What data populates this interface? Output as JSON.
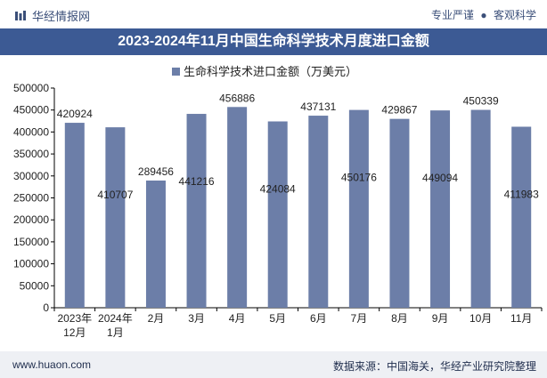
{
  "header": {
    "brand": "华经情报网",
    "tag1": "专业严谨",
    "separator": "●",
    "tag2": "客观科学"
  },
  "chart_data": {
    "type": "bar",
    "title": "2023-2024年11月中国生命科学技术月度进口金额",
    "categories": [
      "2023年\n12月",
      "2024年\n1月",
      "2月",
      "3月",
      "4月",
      "5月",
      "6月",
      "7月",
      "8月",
      "9月",
      "10月",
      "11月"
    ],
    "series": [
      {
        "name": "生命科学技术进口金额（万美元）",
        "values": [
          420924,
          410707,
          289456,
          441216,
          456886,
          424084,
          437131,
          450176,
          429867,
          449094,
          450339,
          411983
        ]
      }
    ],
    "label_positions": [
      "top",
      "inside",
      "top",
      "inside",
      "top",
      "inside",
      "top",
      "inside",
      "top",
      "inside",
      "top",
      "inside"
    ],
    "ylim": [
      0,
      500000
    ],
    "yticks": [
      0,
      50000,
      100000,
      150000,
      200000,
      250000,
      300000,
      350000,
      400000,
      450000,
      500000
    ],
    "legend": "top-center",
    "grid": false,
    "colors": {
      "bar": "#6c7ea8",
      "axis": "#000000",
      "title_bg": "#3c5a94"
    }
  },
  "footer": {
    "url": "www.huaon.com",
    "source": "数据来源：中国海关，华经产业研究院整理"
  }
}
